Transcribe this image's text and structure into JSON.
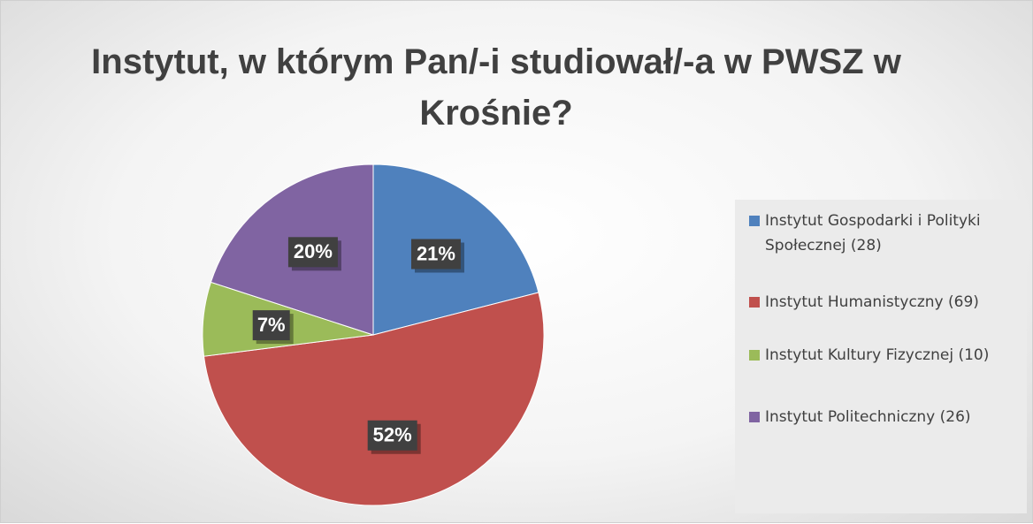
{
  "chart_data": {
    "type": "pie",
    "title": "Instytut, w którym Pan/-i studiował/-a w PWSZ w Krośnie?",
    "categories": [
      "Instytut Gospodarki i Polityki Społecznej (28)",
      "Instytut Humanistyczny (69)",
      "Instytut Kultury Fizycznej (10)",
      "Instytut Politechniczny (26)"
    ],
    "values": [
      21,
      52,
      7,
      20
    ],
    "value_labels": [
      "21%",
      "52%",
      "7%",
      "20%"
    ],
    "colors": [
      "#4f81bd",
      "#c0504d",
      "#9bbb59",
      "#8064a2"
    ],
    "legend": "right"
  }
}
